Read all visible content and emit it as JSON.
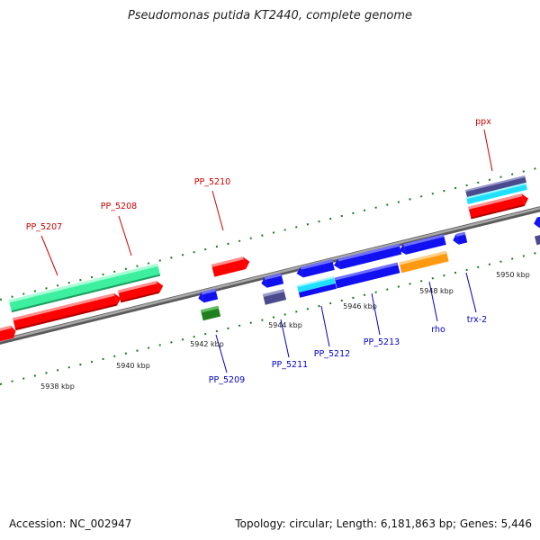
{
  "title": "Pseudomonas putida KT2440, complete genome",
  "accession_text": "Accession: NC_002947",
  "topology_text": "Topology: circular; Length: 6,181,863 bp; Genes: 5,446",
  "colors": {
    "backbone": "#808080",
    "red": "#ff0000",
    "blue": "#1010f0",
    "green_light": "#3cf0a0",
    "cyan": "#20e0ff",
    "slate": "#4a4a8c",
    "dark_green": "#208020",
    "orange": "#ff9a10",
    "tick": "#1a7a1a",
    "forward_label": "#cc0000",
    "reverse_label": "#0000cc"
  },
  "scale_labels": [
    "5938 kbp",
    "5940 kbp",
    "5942 kbp",
    "5944 kbp",
    "5946 kbp",
    "5948 kbp",
    "5950 kbp"
  ],
  "forward_gene_labels": [
    "PP_5207",
    "PP_5208",
    "PP_5210",
    "ppx"
  ],
  "reverse_gene_labels": [
    "PP_5209",
    "PP_5211",
    "PP_5212",
    "PP_5213",
    "rho",
    "trx-2"
  ]
}
